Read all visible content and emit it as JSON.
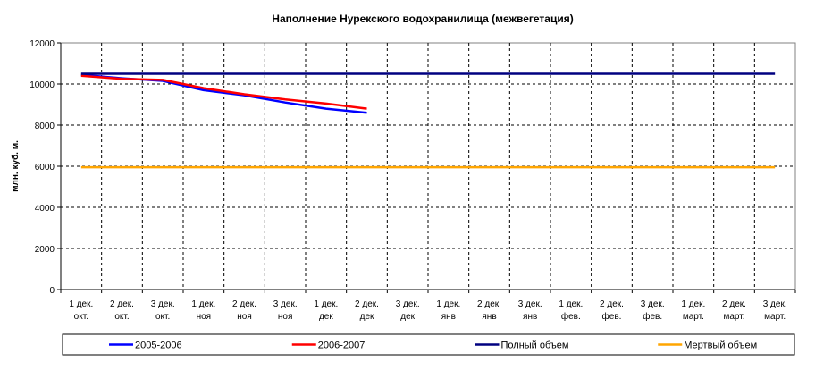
{
  "chart_data": {
    "type": "line",
    "title": "Наполнение Нурекского водохранилища (межвегетация)",
    "xlabel": "",
    "ylabel": "млн. куб. м.",
    "ylim": [
      0,
      12000
    ],
    "yticks": [
      0,
      2000,
      4000,
      6000,
      8000,
      10000,
      12000
    ],
    "grid": true,
    "legend_position": "bottom",
    "categories": [
      [
        "1 дек.",
        "окт."
      ],
      [
        "2 дек.",
        "окт."
      ],
      [
        "3 дек.",
        "окт."
      ],
      [
        "1 дек.",
        "ноя"
      ],
      [
        "2 дек.",
        "ноя"
      ],
      [
        "3 дек.",
        "ноя"
      ],
      [
        "1 дек.",
        "дек"
      ],
      [
        "2 дек.",
        "дек"
      ],
      [
        "3 дек.",
        "дек"
      ],
      [
        "1 дек.",
        "янв"
      ],
      [
        "2 дек.",
        "янв"
      ],
      [
        "3 дек.",
        "янв"
      ],
      [
        "1 дек.",
        "фев."
      ],
      [
        "2 дек.",
        "фев."
      ],
      [
        "3 дек.",
        "фев."
      ],
      [
        "1 дек.",
        "март."
      ],
      [
        "2 дек.",
        "март."
      ],
      [
        "3 дек.",
        "март."
      ]
    ],
    "series": [
      {
        "name": "2005-2006",
        "color": "#0000ff",
        "values": [
          10450,
          10280,
          10150,
          9700,
          9450,
          9100,
          8800,
          8600,
          null,
          null,
          null,
          null,
          null,
          null,
          null,
          null,
          null,
          null
        ]
      },
      {
        "name": "2006-2007",
        "color": "#ff0000",
        "values": [
          10400,
          10250,
          10200,
          9800,
          9500,
          9250,
          9050,
          8800,
          null,
          null,
          null,
          null,
          null,
          null,
          null,
          null,
          null,
          null
        ]
      },
      {
        "name": "Полный объем",
        "color": "#000080",
        "values": [
          10500,
          10500,
          10500,
          10500,
          10500,
          10500,
          10500,
          10500,
          10500,
          10500,
          10500,
          10500,
          10500,
          10500,
          10500,
          10500,
          10500,
          10500
        ]
      },
      {
        "name": "Мертвый объем",
        "color": "#ffa500",
        "values": [
          5950,
          5950,
          5950,
          5950,
          5950,
          5950,
          5950,
          5950,
          5950,
          5950,
          5950,
          5950,
          5950,
          5950,
          5950,
          5950,
          5950,
          5950
        ]
      }
    ]
  }
}
